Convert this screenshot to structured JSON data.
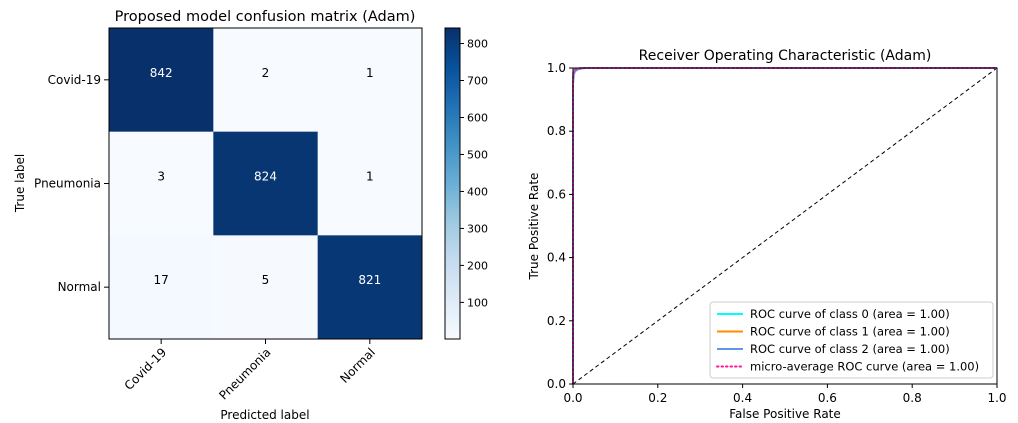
{
  "chart_data": [
    {
      "type": "heatmap",
      "title": "Proposed model confusion matrix (Adam)",
      "xlabel": "Predicted label",
      "ylabel": "True label",
      "x_categories": [
        "Covid-19",
        "Pneumonia",
        "Normal"
      ],
      "y_categories": [
        "Covid-19",
        "Pneumonia",
        "Normal"
      ],
      "values": [
        [
          842,
          2,
          1
        ],
        [
          3,
          824,
          1
        ],
        [
          17,
          5,
          821
        ]
      ],
      "colorbar": {
        "ticks": [
          100,
          200,
          300,
          400,
          500,
          600,
          700,
          800
        ],
        "range": [
          1,
          842
        ]
      },
      "colormap": {
        "low": "#f7fbff",
        "high": "#08306b"
      },
      "cell_text_colors": {
        "dark_cell": "#ffffff",
        "light_cell": "#000000"
      }
    },
    {
      "type": "line",
      "title": "Receiver Operating Characteristic (Adam)",
      "xlabel": "False Positive Rate",
      "ylabel": "True Positive Rate",
      "xlim": [
        0.0,
        1.0
      ],
      "ylim": [
        0.0,
        1.0
      ],
      "xticks": [
        "0.0",
        "0.2",
        "0.4",
        "0.6",
        "0.8",
        "1.0"
      ],
      "yticks": [
        "0.0",
        "0.2",
        "0.4",
        "0.6",
        "0.8",
        "1.0"
      ],
      "legend_position": "lower right",
      "series": [
        {
          "name": "ROC curve of class 0 (area = 1.00)",
          "color": "#00ffff",
          "style": "solid",
          "x": [
            0,
            0,
            0.001,
            0.003,
            0.01,
            0.02,
            1.0
          ],
          "y": [
            0,
            0.97,
            0.99,
            0.995,
            0.998,
            1.0,
            1.0
          ]
        },
        {
          "name": "ROC curve of class 1 (area = 1.00)",
          "color": "#ff8c00",
          "style": "solid",
          "x": [
            0,
            0,
            0.001,
            0.004,
            0.01,
            0.03,
            1.0
          ],
          "y": [
            0,
            0.96,
            0.985,
            0.993,
            0.997,
            1.0,
            1.0
          ]
        },
        {
          "name": "ROC curve of class 2 (area = 1.00)",
          "color": "#6495ed",
          "style": "solid",
          "x": [
            0,
            0,
            0.002,
            0.005,
            0.012,
            0.025,
            1.0
          ],
          "y": [
            0,
            0.95,
            0.98,
            0.99,
            0.996,
            1.0,
            1.0
          ]
        },
        {
          "name": "micro-average ROC curve (area = 1.00)",
          "color": "#ff1493",
          "style": "dotted",
          "x": [
            0,
            0,
            0.001,
            0.003,
            0.01,
            0.02,
            1.0
          ],
          "y": [
            0,
            0.965,
            0.988,
            0.994,
            0.997,
            1.0,
            1.0
          ]
        }
      ],
      "reference_line": {
        "x": [
          0,
          1
        ],
        "y": [
          0,
          1
        ],
        "color": "#000000",
        "style": "dashed"
      }
    }
  ]
}
